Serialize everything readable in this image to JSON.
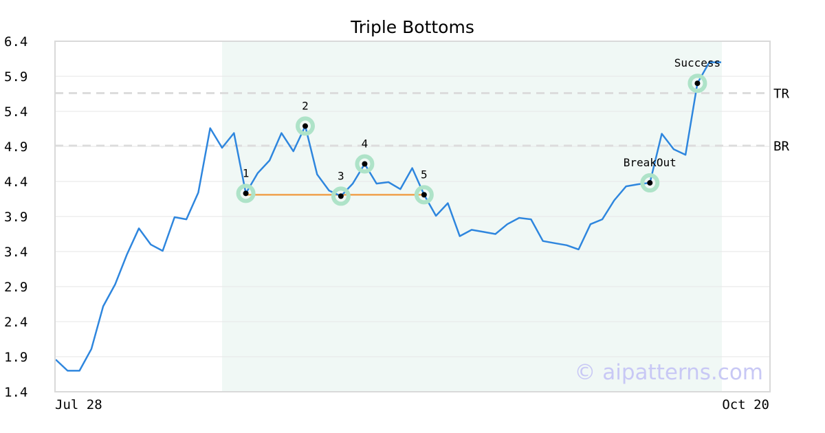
{
  "chart_data": {
    "type": "line",
    "title": "Triple Bottoms",
    "watermark": "© aipatterns.com",
    "ylim": [
      1.4,
      6.4
    ],
    "y_ticks": [
      "1.4",
      "1.9",
      "2.4",
      "2.9",
      "3.4",
      "3.9",
      "4.4",
      "4.9",
      "5.4",
      "5.9",
      "6.4"
    ],
    "x_labels": {
      "first": "Jul 28",
      "last": "Oct 20"
    },
    "grid": true,
    "colors": {
      "line": "#2e86de",
      "highlight": "#e6f4ee",
      "bottom_line": "#f0a04a",
      "marker_halo": "#aee3c8",
      "level_line": "#dcdcdc",
      "watermark": "#c8c8f5"
    },
    "pattern_window": [
      14,
      56
    ],
    "levels": [
      {
        "label": "TR",
        "value": 5.66
      },
      {
        "label": "BR",
        "value": 4.91
      }
    ],
    "bottom_line": {
      "from": 16,
      "to": 31,
      "value": 4.21
    },
    "points": [
      {
        "label": "1",
        "index": 16,
        "value": 4.23
      },
      {
        "label": "2",
        "index": 21,
        "value": 5.19
      },
      {
        "label": "3",
        "index": 24,
        "value": 4.19
      },
      {
        "label": "4",
        "index": 26,
        "value": 4.65
      },
      {
        "label": "5",
        "index": 31,
        "value": 4.21
      },
      {
        "label": "BreakOut",
        "index": 50,
        "value": 4.38
      },
      {
        "label": "Success",
        "index": 54,
        "value": 5.8
      }
    ],
    "series": [
      {
        "values": [
          1.86,
          1.7,
          1.7,
          2.01,
          2.62,
          2.93,
          3.36,
          3.73,
          3.5,
          3.41,
          3.89,
          3.86,
          4.24,
          5.16,
          4.88,
          5.09,
          4.23,
          4.52,
          4.7,
          5.09,
          4.83,
          5.19,
          4.5,
          4.27,
          4.19,
          4.37,
          4.65,
          4.37,
          4.39,
          4.29,
          4.59,
          4.21,
          3.91,
          4.09,
          3.62,
          3.71,
          3.68,
          3.65,
          3.79,
          3.88,
          3.86,
          3.55,
          3.52,
          3.49,
          3.43,
          3.79,
          3.86,
          4.13,
          4.33,
          4.36,
          4.38,
          5.08,
          4.86,
          4.78,
          5.8,
          6.1,
          6.1
        ]
      }
    ]
  }
}
